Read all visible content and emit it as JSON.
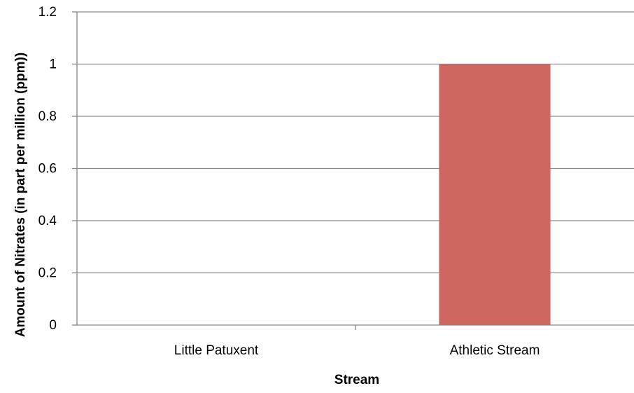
{
  "chart_data": {
    "type": "bar",
    "title": "",
    "xlabel": "Stream",
    "ylabel": "Amount of Nitrates (in part per million (ppm))",
    "categories": [
      "Little Patuxent",
      "Athletic Stream"
    ],
    "values": [
      0,
      1
    ],
    "ylim": [
      0,
      1.2
    ],
    "yticks": [
      0,
      0.2,
      0.4,
      0.6,
      0.8,
      1,
      1.2
    ],
    "ytick_labels": [
      "0",
      "0.2",
      "0.4",
      "0.6",
      "0.8",
      "1",
      "1.2"
    ],
    "grid": true,
    "legend": "none",
    "bar_color": "#CD6760",
    "axis_color": "#868686",
    "grid_color": "#8C8C8C"
  }
}
